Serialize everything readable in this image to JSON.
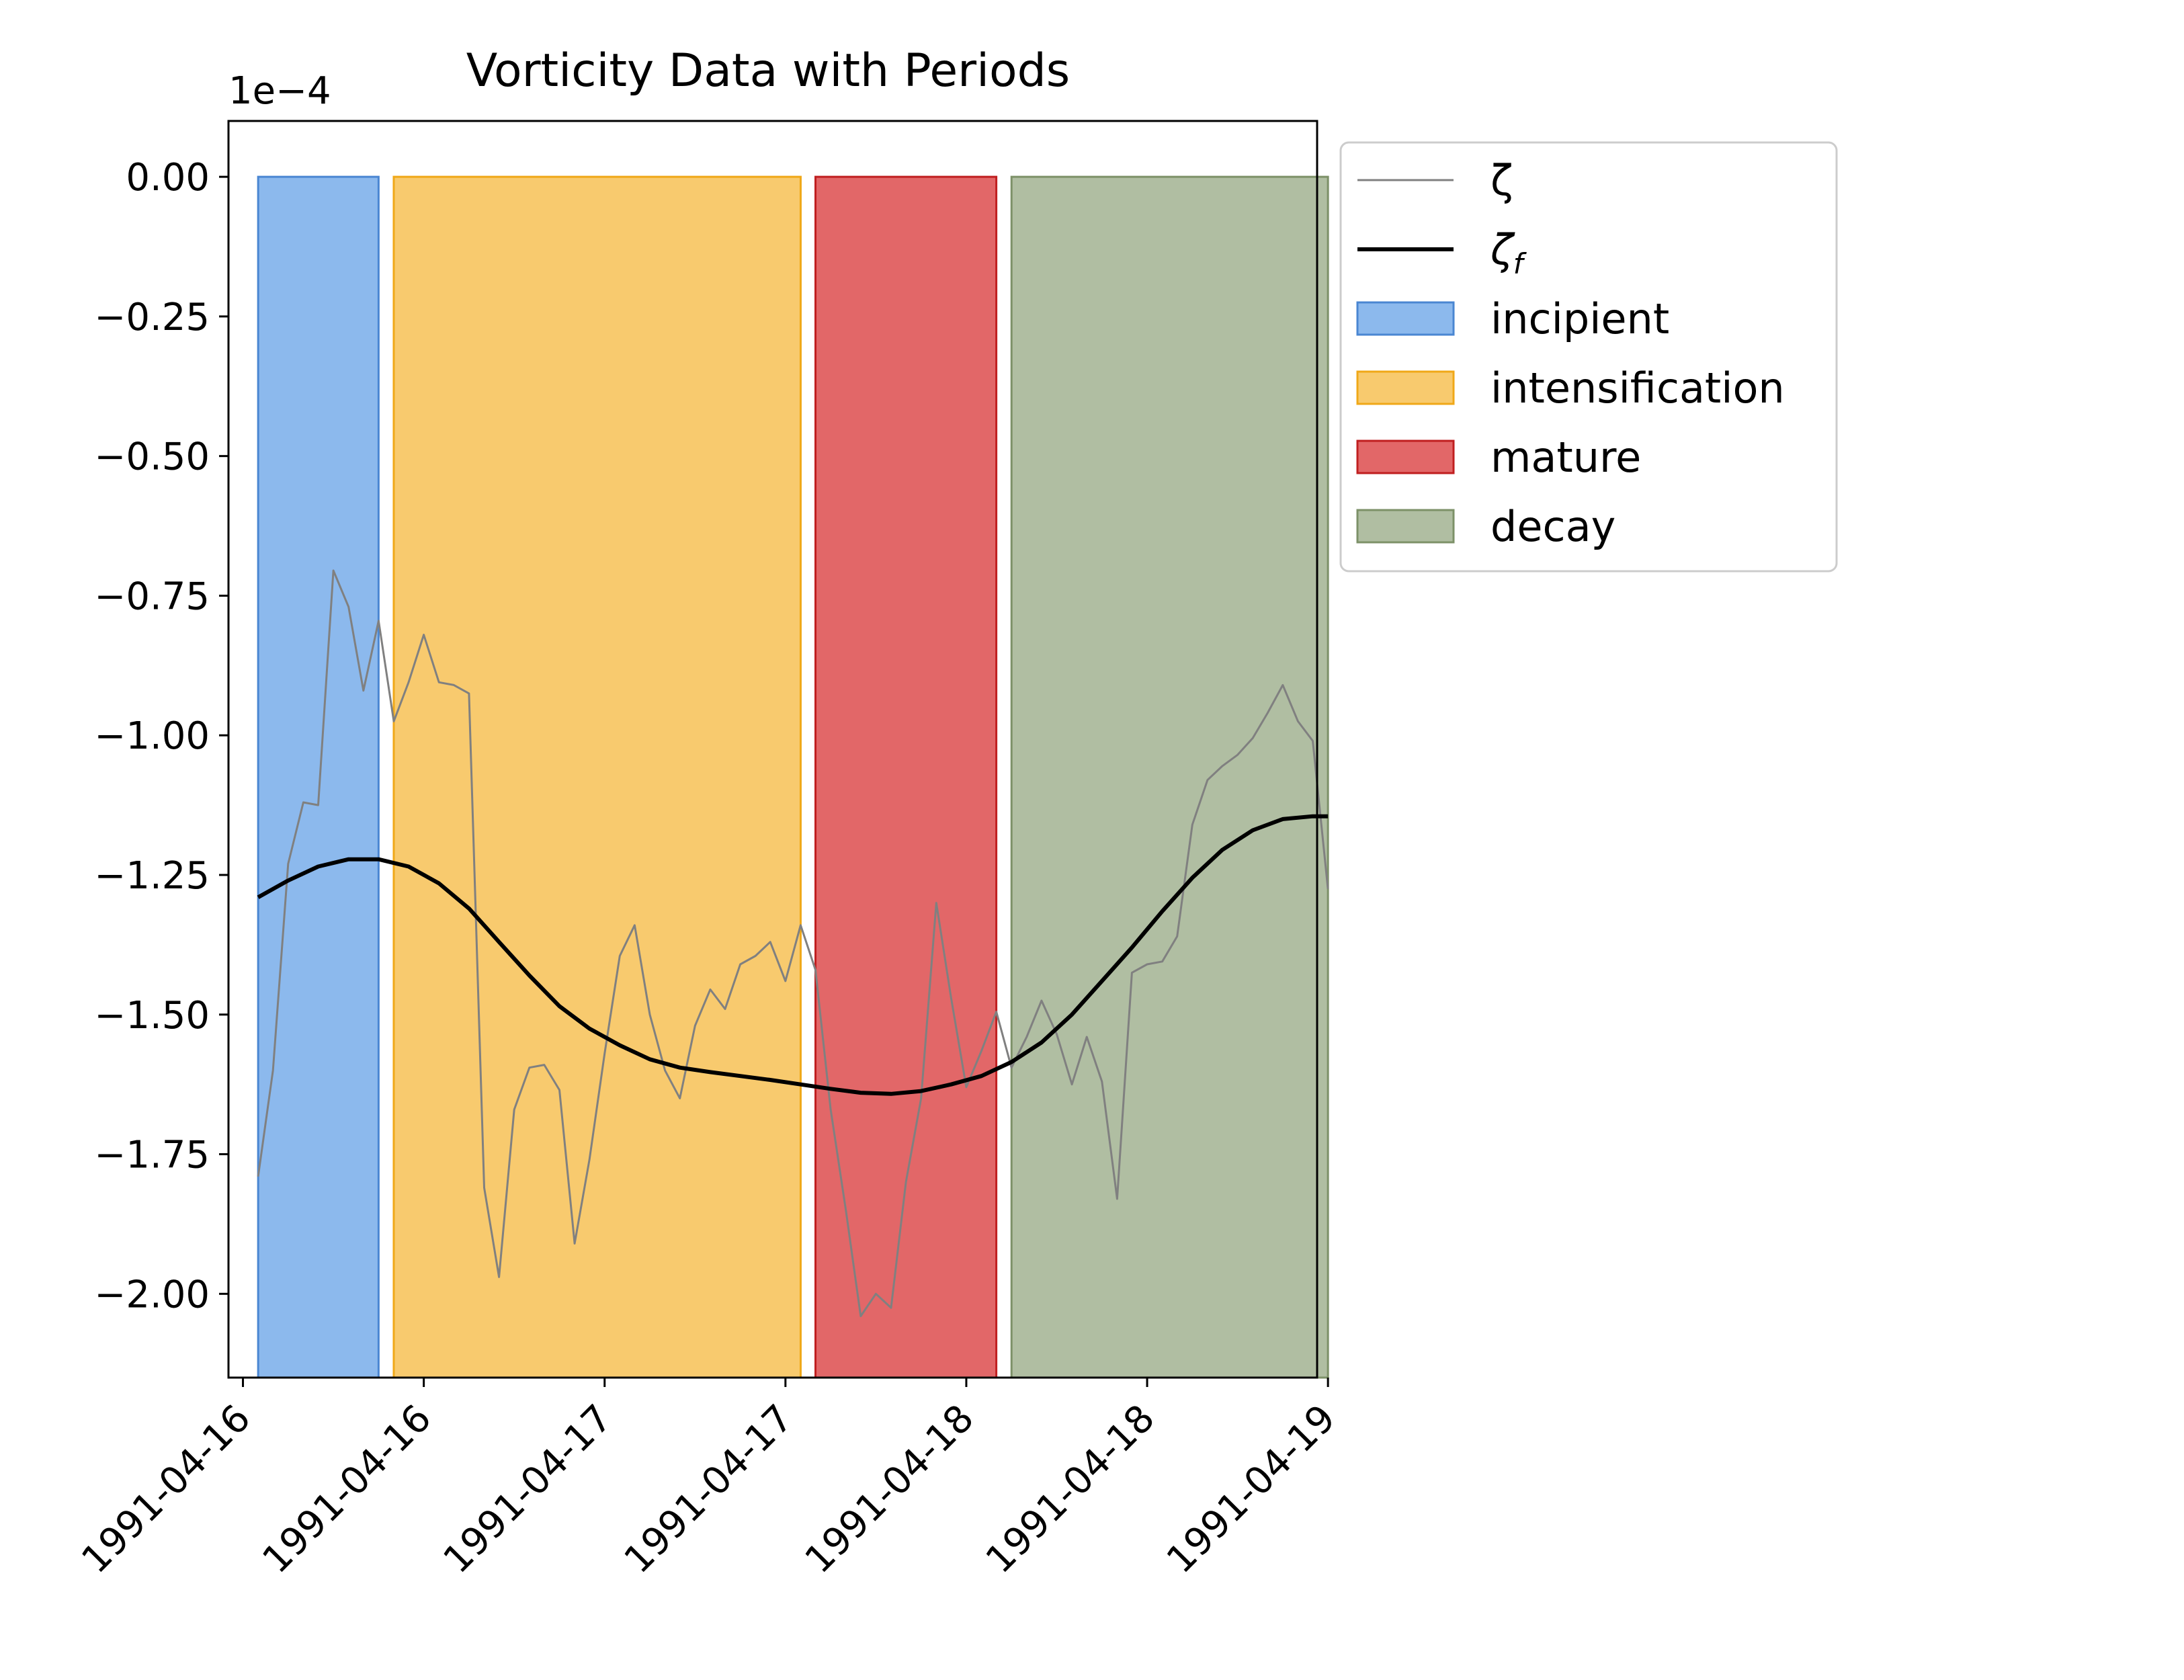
{
  "chart_data": {
    "type": "line",
    "title": "Vorticity Data with Periods",
    "y_scale_label": "1e−4",
    "y_scale_factor": 0.0001,
    "xlabel": "",
    "ylabel": "",
    "ylim": [
      -2.15,
      0.1
    ],
    "y_ticks": [
      0.0,
      -0.25,
      -0.5,
      -0.75,
      -1.0,
      -1.25,
      -1.5,
      -1.75,
      -2.0
    ],
    "y_tick_labels": [
      "0.00",
      "−0.25",
      "−0.50",
      "−0.75",
      "−1.00",
      "−1.25",
      "−1.50",
      "−1.75",
      "−2.00"
    ],
    "x_range_days": [
      -0.04,
      2.97
    ],
    "x_ticks": [
      0,
      0.5,
      1,
      1.5,
      2,
      2.5,
      3
    ],
    "x_tick_labels": [
      "1991-04-16",
      "1991-04-16",
      "1991-04-17",
      "1991-04-17",
      "1991-04-18",
      "1991-04-18",
      "1991-04-19"
    ],
    "grid": false,
    "legend_position": "outside-upper-right",
    "periods": [
      {
        "name": "incipient",
        "start": 0.042,
        "end": 0.375,
        "color": "#5b9be6",
        "edge": "#4a86d2"
      },
      {
        "name": "intensification",
        "start": 0.417,
        "end": 1.542,
        "color": "#f5b431",
        "edge": "#f0a818"
      },
      {
        "name": "mature",
        "start": 1.583,
        "end": 2.083,
        "color": "#d62728",
        "edge": "#c01f20"
      },
      {
        "name": "decay",
        "start": 2.125,
        "end": 3.0,
        "color": "#8fa37a",
        "edge": "#7d9168"
      }
    ],
    "series": [
      {
        "name": "ζ",
        "color": "#808080",
        "x": [
          0.042,
          0.083,
          0.125,
          0.167,
          0.208,
          0.25,
          0.292,
          0.333,
          0.375,
          0.417,
          0.458,
          0.5,
          0.542,
          0.583,
          0.625,
          0.667,
          0.708,
          0.75,
          0.792,
          0.833,
          0.875,
          0.917,
          0.958,
          1.0,
          1.042,
          1.083,
          1.125,
          1.167,
          1.208,
          1.25,
          1.292,
          1.333,
          1.375,
          1.417,
          1.458,
          1.5,
          1.542,
          1.583,
          1.625,
          1.667,
          1.708,
          1.75,
          1.792,
          1.833,
          1.875,
          1.917,
          1.958,
          2.0,
          2.042,
          2.083,
          2.125,
          2.167,
          2.208,
          2.25,
          2.292,
          2.333,
          2.375,
          2.417,
          2.458,
          2.5,
          2.542,
          2.583,
          2.625,
          2.667,
          2.708,
          2.75,
          2.792,
          2.833,
          2.875,
          2.917,
          2.958,
          3.0
        ],
        "values": [
          -1.79,
          -1.6,
          -1.23,
          -1.12,
          -1.125,
          -0.705,
          -0.77,
          -0.92,
          -0.795,
          -0.975,
          -0.905,
          -0.82,
          -0.905,
          -0.91,
          -0.925,
          -1.81,
          -1.97,
          -1.67,
          -1.595,
          -1.59,
          -1.635,
          -1.91,
          -1.76,
          -1.57,
          -1.395,
          -1.34,
          -1.5,
          -1.6,
          -1.65,
          -1.52,
          -1.455,
          -1.49,
          -1.41,
          -1.395,
          -1.37,
          -1.44,
          -1.34,
          -1.42,
          -1.67,
          -1.85,
          -2.04,
          -2.0,
          -2.025,
          -1.8,
          -1.65,
          -1.3,
          -1.47,
          -1.63,
          -1.565,
          -1.495,
          -1.595,
          -1.54,
          -1.475,
          -1.535,
          -1.625,
          -1.54,
          -1.62,
          -1.83,
          -1.425,
          -1.41,
          -1.405,
          -1.36,
          -1.16,
          -1.08,
          -1.055,
          -1.035,
          -1.005,
          -0.96,
          -0.91,
          -0.975,
          -1.01,
          -1.275
        ]
      },
      {
        "name": "ζ_f",
        "color": "#000000",
        "x": [
          0.042,
          0.125,
          0.208,
          0.292,
          0.375,
          0.458,
          0.542,
          0.625,
          0.708,
          0.792,
          0.875,
          0.958,
          1.042,
          1.125,
          1.208,
          1.292,
          1.375,
          1.458,
          1.542,
          1.625,
          1.708,
          1.792,
          1.875,
          1.958,
          2.042,
          2.125,
          2.208,
          2.292,
          2.375,
          2.458,
          2.542,
          2.625,
          2.708,
          2.792,
          2.875,
          2.958,
          3.0
        ],
        "values": [
          -1.29,
          -1.26,
          -1.235,
          -1.222,
          -1.222,
          -1.235,
          -1.265,
          -1.31,
          -1.37,
          -1.43,
          -1.485,
          -1.525,
          -1.555,
          -1.58,
          -1.595,
          -1.603,
          -1.61,
          -1.617,
          -1.625,
          -1.633,
          -1.64,
          -1.642,
          -1.637,
          -1.625,
          -1.61,
          -1.585,
          -1.55,
          -1.5,
          -1.44,
          -1.38,
          -1.315,
          -1.255,
          -1.205,
          -1.17,
          -1.15,
          -1.145,
          -1.145
        ]
      }
    ]
  },
  "legend": {
    "items": [
      {
        "label": "ζ",
        "kind": "line",
        "color": "#808080"
      },
      {
        "label": "ζ",
        "subscript": "f",
        "kind": "line",
        "color": "#000000"
      },
      {
        "label": "incipient",
        "kind": "patch",
        "color": "#5b9be6"
      },
      {
        "label": "intensification",
        "kind": "patch",
        "color": "#f5b431"
      },
      {
        "label": "mature",
        "kind": "patch",
        "color": "#d62728"
      },
      {
        "label": "decay",
        "kind": "patch",
        "color": "#8fa37a"
      }
    ]
  }
}
